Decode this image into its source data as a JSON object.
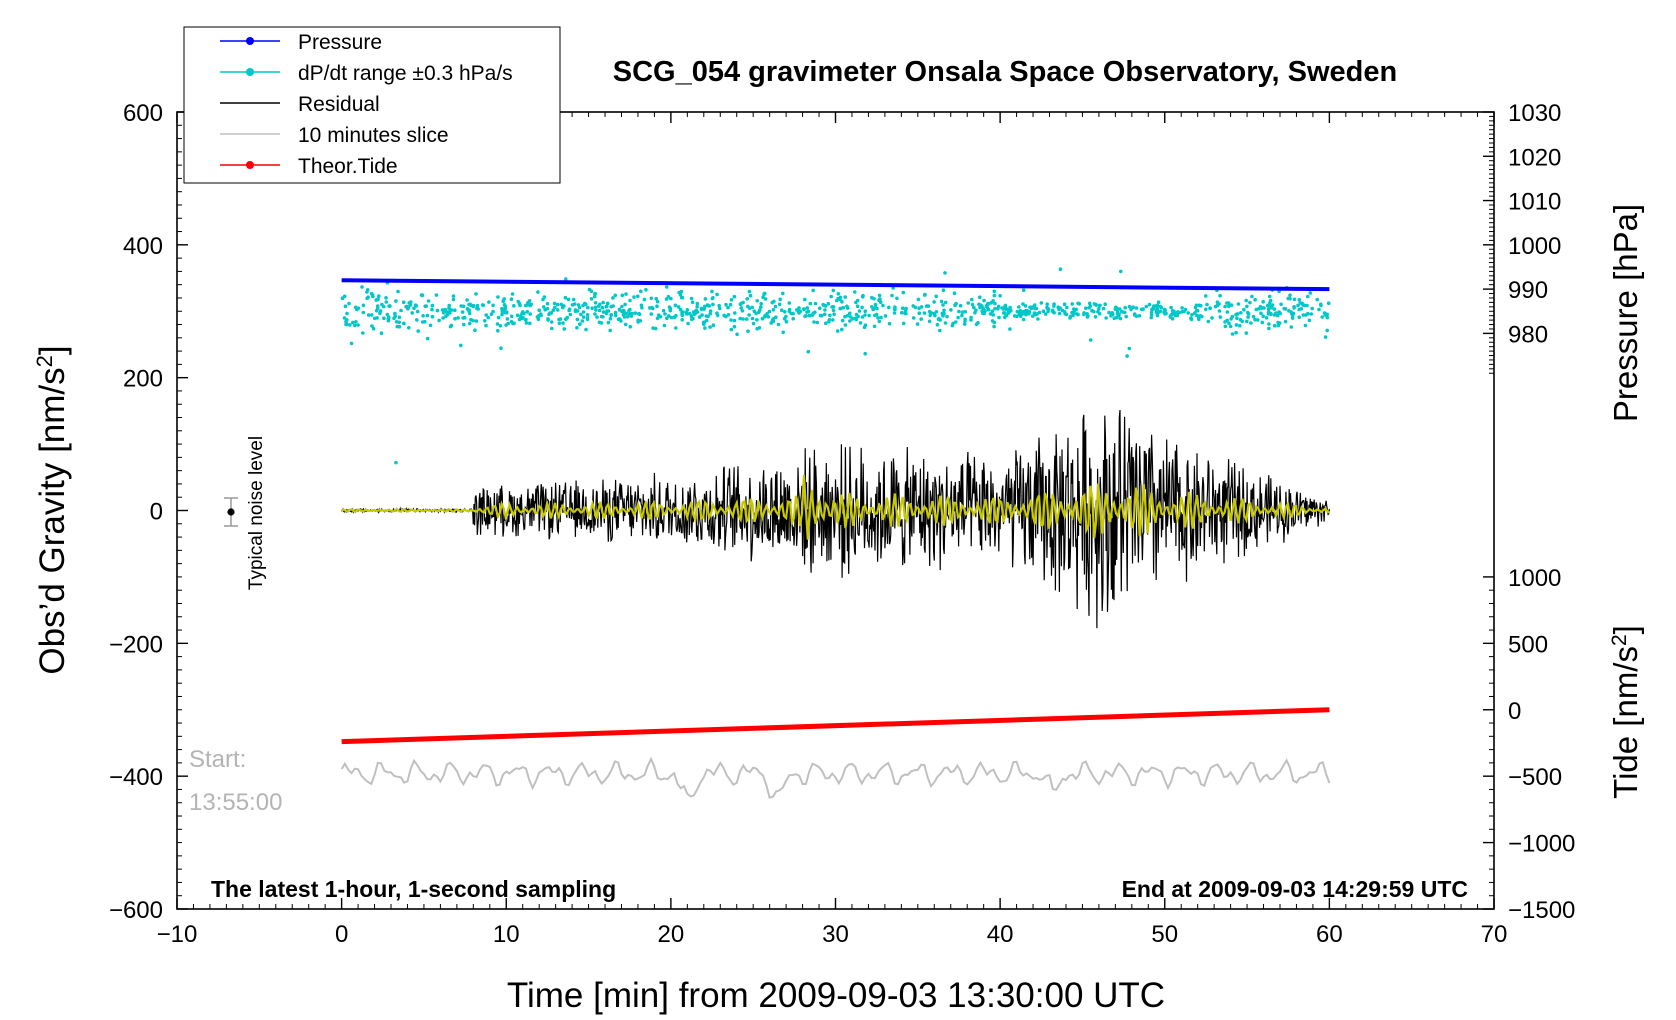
{
  "chart_data": {
    "type": "line",
    "title": "SCG_054 gravimeter Onsala Space Observatory, Sweden",
    "xlabel": "Time [min] from 2009-09-03 13:30:00 UTC",
    "ylabel_left": "Obs’d Gravity [nm/s",
    "ylabel_left_sup": "2",
    "ylabel_left_end": "]",
    "ylabel_right_pressure": "Pressure [hPa]",
    "ylabel_right_tide": "Tide [nm/s",
    "ylabel_right_tide_sup": "2",
    "ylabel_right_tide_end": "]",
    "xlim": [
      -10,
      70
    ],
    "ylim": [
      -600,
      600
    ],
    "x_ticks": [
      -10,
      0,
      10,
      20,
      30,
      40,
      50,
      60,
      70
    ],
    "x_tick_labels": [
      "−10",
      "0",
      "10",
      "20",
      "30",
      "40",
      "50",
      "60",
      "70"
    ],
    "y_ticks": [
      -600,
      -400,
      -200,
      0,
      200,
      400,
      600
    ],
    "y_tick_labels": [
      "−600",
      "−400",
      "−200",
      "0",
      "200",
      "400",
      "600"
    ],
    "pressure_axis": {
      "ticks": [
        980,
        990,
        1000,
        1010,
        1020,
        1030
      ],
      "tick_labels": [
        "980",
        "990",
        "1000",
        "1010",
        "1020",
        "1030"
      ],
      "range": [
        970,
        1030
      ]
    },
    "tide_axis": {
      "ticks": [
        -1500,
        -1000,
        -500,
        0,
        500,
        1000
      ],
      "tick_labels": [
        "−1500",
        "−1000",
        "−500",
        "0",
        "500",
        "1000"
      ],
      "range": [
        -1500,
        1500
      ]
    },
    "legend": {
      "position": "top-left",
      "entries": [
        {
          "label": "Pressure",
          "color": "#0000ff",
          "marker": true
        },
        {
          "label": "dP/dt range ±0.3 hPa/s",
          "color": "#00c8c8",
          "marker": true
        },
        {
          "label": "Residual",
          "color": "#000000",
          "marker": false
        },
        {
          "label": "10 minutes slice",
          "color": "#c0c0c0",
          "marker": false
        },
        {
          "label": "Theor.Tide",
          "color": "#ff0000",
          "marker": true
        }
      ]
    },
    "series": [
      {
        "name": "Pressure",
        "axis": "pressure",
        "x": [
          0,
          60
        ],
        "values": [
          992.0,
          990.0
        ],
        "color": "#0000ff"
      },
      {
        "name": "dP/dt range ±0.3 hPa/s",
        "axis": "gravity",
        "center": 300,
        "x": [
          0,
          60
        ],
        "color": "#00c8c8"
      },
      {
        "name": "Residual",
        "axis": "gravity",
        "x": [
          0,
          60
        ],
        "envelope_x": [
          0,
          8,
          20,
          30,
          40,
          47,
          50,
          60
        ],
        "envelope_amp": [
          3,
          40,
          60,
          110,
          90,
          200,
          130,
          20
        ],
        "color": "#000000"
      },
      {
        "name": "Residual (smoothed)",
        "axis": "gravity",
        "x": [
          0,
          60
        ],
        "color": "#c8c800"
      },
      {
        "name": "10 minutes slice",
        "axis": "tide",
        "x": [
          0,
          60
        ],
        "center": -480,
        "color": "#c0c0c0"
      },
      {
        "name": "Theor.Tide",
        "axis": "tide",
        "x": [
          0,
          60
        ],
        "values": [
          -240,
          0
        ],
        "color": "#ff0000"
      }
    ],
    "noise_level": {
      "label": "Typical noise level",
      "x": -7,
      "y": 0,
      "err": 12
    },
    "annotations": {
      "start_label": "Start:",
      "start_time": "13:55:00",
      "bottom_left": "The latest 1-hour, 1-second sampling",
      "bottom_right": "End at 2009-09-03 14:29:59 UTC"
    }
  }
}
